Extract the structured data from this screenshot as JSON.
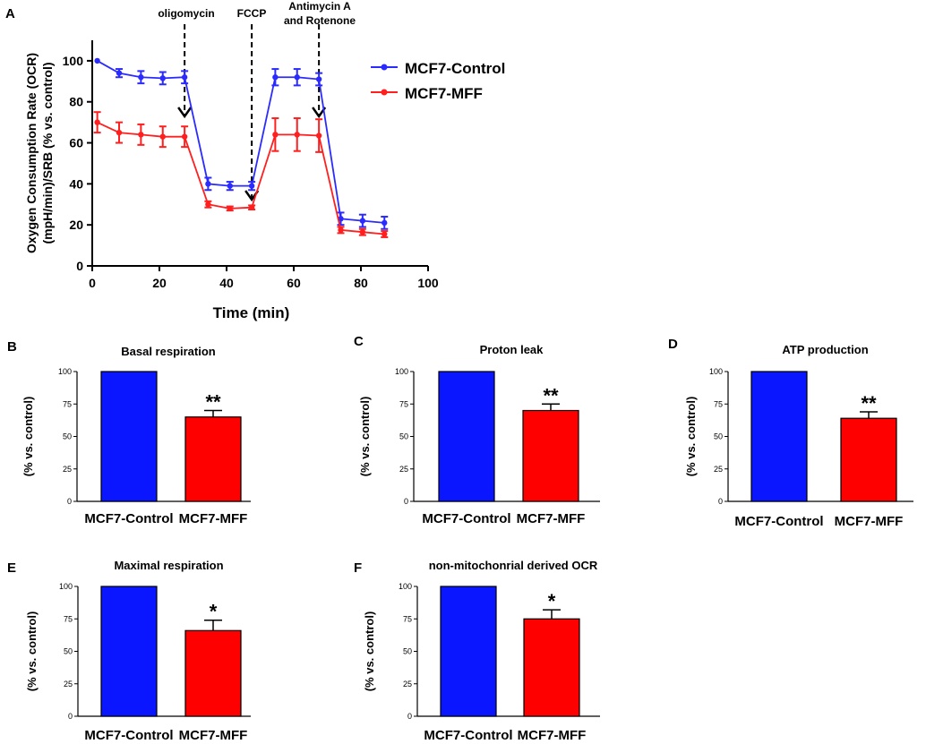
{
  "colors": {
    "control": "#2b2bff",
    "mff": "#ff1f1f",
    "axis": "#000000",
    "bar_control": "#0a16ff",
    "bar_mff": "#ff0000"
  },
  "chart_data": [
    {
      "id": "A",
      "panel_label": "A",
      "type": "line",
      "title": "",
      "xlabel": "Time (min)",
      "ylabel_line1": "Oxygen Consumption Rate (OCR)",
      "ylabel_line2": "(mpH/min)/SRB (% vs. control)",
      "xlim": [
        0,
        100
      ],
      "ylim": [
        0,
        110
      ],
      "xticks": [
        "0",
        "20",
        "40",
        "60",
        "80",
        "100"
      ],
      "yticks": [
        "0",
        "20",
        "40",
        "60",
        "80",
        "100"
      ],
      "xtick_values": [
        0,
        20,
        40,
        60,
        80,
        100
      ],
      "ytick_values": [
        0,
        20,
        40,
        60,
        80,
        100
      ],
      "legend_position": "top-right",
      "series": [
        {
          "name": "MCF7-Control",
          "x": [
            1.5,
            8,
            14.5,
            21,
            27.5,
            34.5,
            41,
            47.5,
            54.5,
            61,
            67.5,
            74,
            80.5,
            87
          ],
          "y": [
            100,
            94,
            92,
            91.5,
            92,
            40,
            39,
            39,
            92,
            92,
            91,
            23,
            22,
            21
          ],
          "err": [
            0,
            2,
            3,
            3,
            3,
            3,
            2,
            2,
            4,
            4,
            3,
            3,
            3,
            3
          ]
        },
        {
          "name": "MCF7-MFF",
          "x": [
            1.5,
            8,
            14.5,
            21,
            27.5,
            34.5,
            41,
            47.5,
            54.5,
            61,
            67.5,
            74,
            80.5,
            87
          ],
          "y": [
            70,
            65,
            64,
            63,
            63,
            30,
            28,
            28.5,
            64,
            64,
            63.5,
            17.5,
            16.5,
            15.5
          ],
          "err": [
            5,
            5,
            5,
            5,
            5,
            1.5,
            1,
            1,
            8,
            8,
            8,
            1.5,
            1.5,
            1.5
          ]
        }
      ],
      "annotations": [
        {
          "line1": "oligomycin",
          "line2": "",
          "x": 27.5
        },
        {
          "line1": "FCCP",
          "line2": "",
          "x": 47.5
        },
        {
          "line1": "Antimycin A",
          "line2": "and Rotenone",
          "x": 67.5
        }
      ]
    },
    {
      "id": "B",
      "panel_label": "B",
      "type": "bar",
      "title": "Basal respiration",
      "ylabel": "(% vs. control)",
      "ylim": [
        0,
        100
      ],
      "yticks": [
        "0",
        "25",
        "50",
        "75",
        "100"
      ],
      "ytick_values": [
        0,
        25,
        50,
        75,
        100
      ],
      "categories": [
        "MCF7-Control",
        "MCF7-MFF"
      ],
      "values": [
        100,
        65
      ],
      "errors": [
        0,
        5
      ],
      "significance": [
        "",
        "**"
      ]
    },
    {
      "id": "C",
      "panel_label": "C",
      "type": "bar",
      "title": "Proton leak",
      "ylabel": "(% vs. control)",
      "ylim": [
        0,
        100
      ],
      "yticks": [
        "0",
        "25",
        "50",
        "75",
        "100"
      ],
      "ytick_values": [
        0,
        25,
        50,
        75,
        100
      ],
      "categories": [
        "MCF7-Control",
        "MCF7-MFF"
      ],
      "values": [
        100,
        70
      ],
      "errors": [
        0,
        5
      ],
      "significance": [
        "",
        "**"
      ]
    },
    {
      "id": "D",
      "panel_label": "D",
      "type": "bar",
      "title": "ATP production",
      "ylabel": "(% vs. control)",
      "ylim": [
        0,
        100
      ],
      "yticks": [
        "0",
        "25",
        "50",
        "75",
        "100"
      ],
      "ytick_values": [
        0,
        25,
        50,
        75,
        100
      ],
      "categories": [
        "MCF7-Control",
        "MCF7-MFF"
      ],
      "values": [
        100,
        64
      ],
      "errors": [
        0,
        5
      ],
      "significance": [
        "",
        "**"
      ]
    },
    {
      "id": "E",
      "panel_label": "E",
      "type": "bar",
      "title": "Maximal respiration",
      "ylabel": "(% vs. control)",
      "ylim": [
        0,
        100
      ],
      "yticks": [
        "0",
        "25",
        "50",
        "75",
        "100"
      ],
      "ytick_values": [
        0,
        25,
        50,
        75,
        100
      ],
      "categories": [
        "MCF7-Control",
        "MCF7-MFF"
      ],
      "values": [
        100,
        66
      ],
      "errors": [
        0,
        8
      ],
      "significance": [
        "",
        "*"
      ]
    },
    {
      "id": "F",
      "panel_label": "F",
      "type": "bar",
      "title": "non-mitochonrial derived OCR",
      "ylabel": "(% vs. control)",
      "ylim": [
        0,
        100
      ],
      "yticks": [
        "0",
        "25",
        "50",
        "75",
        "100"
      ],
      "ytick_values": [
        0,
        25,
        50,
        75,
        100
      ],
      "categories": [
        "MCF7-Control",
        "MCF7-MFF"
      ],
      "values": [
        100,
        75
      ],
      "errors": [
        0,
        7
      ],
      "significance": [
        "",
        "*"
      ]
    }
  ]
}
